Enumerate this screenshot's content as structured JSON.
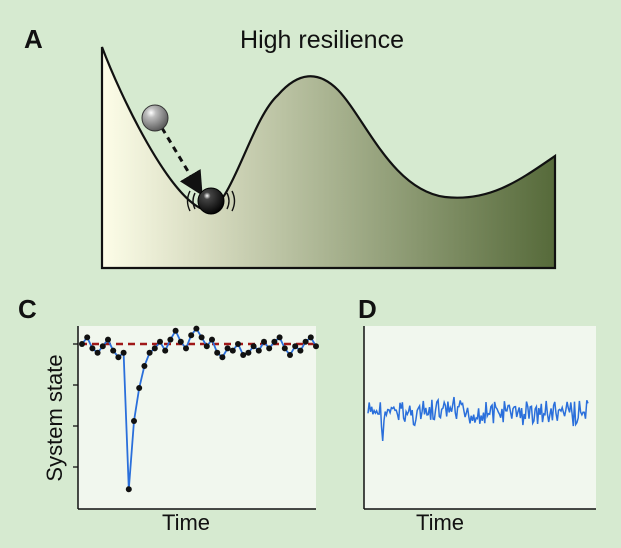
{
  "figure": {
    "panel_a": {
      "letter": "A",
      "title": "High resilience"
    },
    "panel_c": {
      "letter": "C",
      "ylabel": "System state",
      "xlabel": "Time"
    },
    "panel_d": {
      "letter": "D",
      "xlabel": "Time"
    }
  },
  "colors": {
    "background": "#d6ead0",
    "landscape_light": "#fdfde8",
    "landscape_dark": "#566a3a",
    "plot_background": "#f1f7ee",
    "series_line": "#2a6fdb",
    "equilibrium_line": "#a01818",
    "points": "#111111",
    "ball_past": "#8a8a8a",
    "ball_current": "#000000"
  },
  "chart_data": [
    {
      "type": "line",
      "panel": "C",
      "xlabel": "Time",
      "ylabel": "System state",
      "equilibrium": 0,
      "grid": false,
      "y": [
        0,
        0.3,
        -0.2,
        -0.4,
        -0.1,
        0.2,
        -0.3,
        -0.6,
        -0.4,
        -6.6,
        -3.5,
        -2.0,
        -1.0,
        -0.4,
        -0.2,
        0.1,
        -0.3,
        0.2,
        0.6,
        0.1,
        -0.2,
        0.4,
        0.7,
        0.3,
        -0.1,
        0.2,
        -0.4,
        -0.6,
        -0.2,
        -0.3,
        0,
        -0.5,
        -0.4,
        -0.1,
        -0.3,
        0.1,
        -0.2,
        0.1,
        0.3,
        -0.2,
        -0.5,
        -0.1,
        -0.3,
        0.1,
        0.3,
        -0.1
      ]
    },
    {
      "type": "line",
      "panel": "D",
      "xlabel": "Time",
      "grid": false,
      "description_series": "high-frequency noise around a steady level",
      "n_points": 180
    }
  ]
}
